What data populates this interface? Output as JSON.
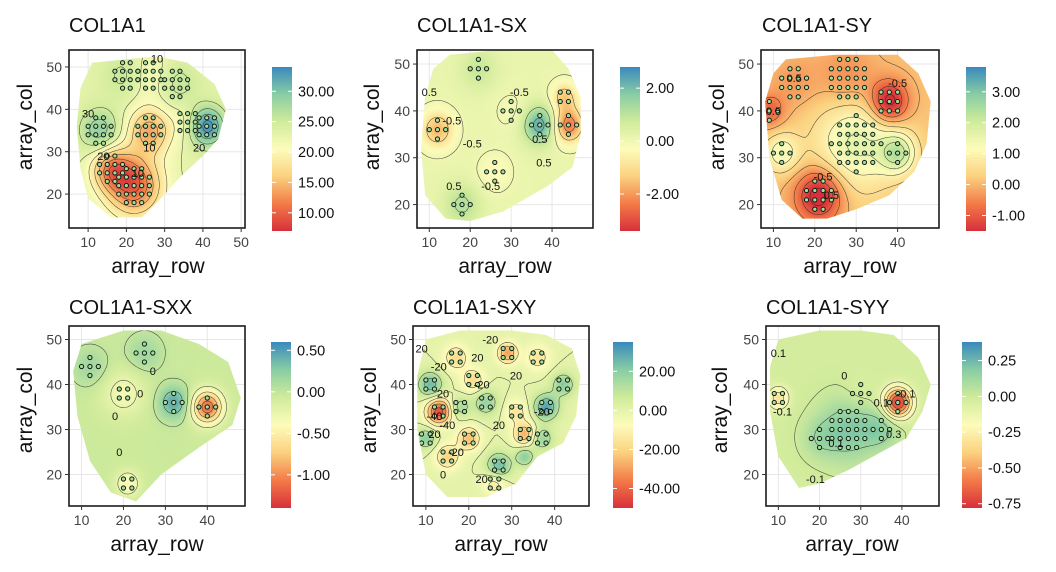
{
  "figure": {
    "colors": {
      "palette_spectral": [
        "#d7303b",
        "#f37b47",
        "#fbd17f",
        "#fdfcbb",
        "#d0eb9b",
        "#88cda4",
        "#3a89bd"
      ],
      "point_fill": "#a7dd9a",
      "point_stroke": "#0f1a14",
      "contour": "#222222",
      "grid": "#e7e7e7",
      "frame": "#1c1c1c"
    }
  },
  "chart_data": [
    {
      "type": "heatmap",
      "title": "COL1A1",
      "xlabel": "array_row",
      "ylabel": "array_col",
      "xlim": [
        5,
        51
      ],
      "ylim": [
        12,
        54
      ],
      "xticks": [
        "10",
        "20",
        "30",
        "40",
        "50"
      ],
      "xtick_values": [
        10,
        20,
        30,
        40,
        50
      ],
      "yticks": [
        "20",
        "30",
        "40",
        "50"
      ],
      "ytick_values": [
        20,
        30,
        40,
        50
      ],
      "colorbar": {
        "min": 7,
        "max": 34,
        "ticks": [
          "10.00",
          "15.00",
          "20.00",
          "25.00",
          "30.00"
        ],
        "tick_values": [
          10,
          15,
          20,
          25,
          30
        ]
      },
      "contour_labels": [
        {
          "text": "10",
          "x": 28,
          "y": 52
        },
        {
          "text": "30",
          "x": 10,
          "y": 39
        },
        {
          "text": "20",
          "x": 14,
          "y": 29
        },
        {
          "text": "10",
          "x": 26,
          "y": 31
        },
        {
          "text": "10",
          "x": 23,
          "y": 25
        },
        {
          "text": "20",
          "x": 39,
          "y": 31
        }
      ],
      "boundary": [
        [
          11,
          51
        ],
        [
          22,
          52
        ],
        [
          28,
          52.5
        ],
        [
          36,
          51
        ],
        [
          43,
          46
        ],
        [
          46,
          40
        ],
        [
          44,
          33
        ],
        [
          40,
          29
        ],
        [
          34,
          24
        ],
        [
          28,
          18
        ],
        [
          24,
          14.5
        ],
        [
          16,
          14.5
        ],
        [
          10,
          19
        ],
        [
          8,
          26
        ],
        [
          7,
          36
        ],
        [
          8,
          45
        ]
      ],
      "clusters": [
        [
          41,
          36,
          3.2,
          11
        ],
        [
          36,
          37,
          3.2,
          -2
        ],
        [
          13,
          35,
          3.6,
          6
        ],
        [
          26,
          35,
          4,
          -9
        ],
        [
          22,
          22,
          5,
          -13
        ],
        [
          16,
          26,
          3.6,
          -9
        ],
        [
          33,
          46,
          4,
          3
        ],
        [
          20,
          48,
          4,
          3
        ],
        [
          26,
          48,
          4,
          -3
        ]
      ],
      "baseline": 23
    },
    {
      "type": "heatmap",
      "title": "COL1A1-SX",
      "xlabel": "array_row",
      "ylabel": "array_col",
      "xlim": [
        7,
        50
      ],
      "ylim": [
        15,
        53
      ],
      "xticks": [
        "10",
        "20",
        "30",
        "40"
      ],
      "xtick_values": [
        10,
        20,
        30,
        40
      ],
      "yticks": [
        "20",
        "30",
        "40",
        "50"
      ],
      "ytick_values": [
        20,
        30,
        40,
        50
      ],
      "colorbar": {
        "min": -3.4,
        "max": 2.8,
        "ticks": [
          "-2.00",
          "0.00",
          "2.00"
        ],
        "tick_values": [
          -2,
          0,
          2
        ]
      },
      "contour_labels": [
        {
          "text": "0.5",
          "x": 10,
          "y": 44
        },
        {
          "text": "-0.5",
          "x": 15.5,
          "y": 38
        },
        {
          "text": "-0.5",
          "x": 20.5,
          "y": 33
        },
        {
          "text": "0.5",
          "x": 37,
          "y": 34
        },
        {
          "text": "0.5",
          "x": 38,
          "y": 29
        },
        {
          "text": "0.5",
          "x": 16,
          "y": 24
        },
        {
          "text": "-0.5",
          "x": 25,
          "y": 24
        },
        {
          "text": "-0.5",
          "x": 32,
          "y": 44
        }
      ],
      "boundary": [
        [
          15,
          52
        ],
        [
          27,
          53
        ],
        [
          40,
          53
        ],
        [
          44,
          49
        ],
        [
          47,
          43
        ],
        [
          47,
          35
        ],
        [
          45,
          28
        ],
        [
          39,
          24
        ],
        [
          33,
          21
        ],
        [
          28,
          18.5
        ],
        [
          20,
          16.5
        ],
        [
          14,
          17
        ],
        [
          9,
          22
        ],
        [
          8,
          32
        ],
        [
          9,
          43
        ],
        [
          11,
          49
        ]
      ],
      "clusters": [
        [
          12,
          36,
          2.8,
          -1.8
        ],
        [
          37,
          37,
          2.8,
          2.2
        ],
        [
          44,
          37,
          2.6,
          -2.6
        ],
        [
          43,
          43,
          2.2,
          -1.5
        ],
        [
          22,
          49,
          3,
          0.7
        ],
        [
          26,
          27,
          3,
          -0.5
        ],
        [
          18,
          20,
          3,
          1
        ],
        [
          30,
          40,
          3,
          -0.3
        ]
      ],
      "baseline": 0.15
    },
    {
      "type": "heatmap",
      "title": "COL1A1-SY",
      "xlabel": "array_row",
      "ylabel": "array_col",
      "xlim": [
        7,
        50
      ],
      "ylim": [
        15,
        53
      ],
      "xticks": [
        "10",
        "20",
        "30",
        "40"
      ],
      "xtick_values": [
        10,
        20,
        30,
        40
      ],
      "yticks": [
        "20",
        "30",
        "40",
        "50"
      ],
      "ytick_values": [
        20,
        30,
        40,
        50
      ],
      "colorbar": {
        "min": -1.5,
        "max": 3.8,
        "ticks": [
          "-1.00",
          "0.00",
          "1.00",
          "2.00",
          "3.00"
        ],
        "tick_values": [
          -1,
          0,
          1,
          2,
          3
        ]
      },
      "contour_labels": [
        {
          "text": "0.5",
          "x": 15,
          "y": 47
        },
        {
          "text": "0.5",
          "x": 10,
          "y": 40
        },
        {
          "text": "-0.5",
          "x": 40,
          "y": 46
        },
        {
          "text": "-0.5",
          "x": 22,
          "y": 26
        },
        {
          "text": "0.5",
          "x": 24,
          "y": 22
        }
      ],
      "boundary": [
        [
          13,
          51
        ],
        [
          25,
          52
        ],
        [
          40,
          52
        ],
        [
          45,
          48
        ],
        [
          48,
          42
        ],
        [
          47,
          33
        ],
        [
          44,
          27
        ],
        [
          38,
          22
        ],
        [
          30,
          19
        ],
        [
          23,
          17
        ],
        [
          17,
          17
        ],
        [
          12,
          21
        ],
        [
          9,
          30
        ],
        [
          8,
          42
        ],
        [
          10,
          48
        ]
      ],
      "clusters": [
        [
          38,
          42,
          3.2,
          -2
        ],
        [
          21,
          22,
          4,
          -2
        ],
        [
          30,
          33,
          7,
          1.5
        ],
        [
          12,
          31,
          3,
          1.2
        ],
        [
          40,
          31,
          3,
          1.8
        ],
        [
          15,
          46,
          4,
          -0.4
        ],
        [
          28,
          47,
          5,
          -0.6
        ],
        [
          9,
          40,
          2.5,
          -1
        ]
      ],
      "baseline": 0.1
    },
    {
      "type": "heatmap",
      "title": "COL1A1-SXX",
      "xlabel": "array_row",
      "ylabel": "array_col",
      "xlim": [
        7,
        49
      ],
      "ylim": [
        13,
        53
      ],
      "xticks": [
        "10",
        "20",
        "30",
        "40"
      ],
      "xtick_values": [
        10,
        20,
        30,
        40
      ],
      "yticks": [
        "20",
        "30",
        "40",
        "50"
      ],
      "ytick_values": [
        20,
        30,
        40,
        50
      ],
      "colorbar": {
        "min": -1.4,
        "max": 0.6,
        "ticks": [
          "-1.00",
          "-0.50",
          "0.00",
          "0.50"
        ],
        "tick_values": [
          -1,
          -0.5,
          0,
          0.5
        ]
      },
      "contour_labels": [
        {
          "text": "0",
          "x": 27,
          "y": 43
        },
        {
          "text": "0",
          "x": 18,
          "y": 33
        },
        {
          "text": "0",
          "x": 24,
          "y": 38
        },
        {
          "text": "0",
          "x": 19,
          "y": 25
        }
      ],
      "boundary": [
        [
          10,
          49
        ],
        [
          20,
          52
        ],
        [
          29,
          52
        ],
        [
          38,
          49
        ],
        [
          45,
          45
        ],
        [
          48,
          37
        ],
        [
          46,
          31
        ],
        [
          38,
          26
        ],
        [
          29,
          20
        ],
        [
          23,
          14
        ],
        [
          17,
          16
        ],
        [
          12,
          23
        ],
        [
          9,
          33
        ],
        [
          8,
          43
        ]
      ],
      "clusters": [
        [
          40,
          35,
          2.5,
          -1.1
        ],
        [
          32,
          36,
          2.5,
          0.5
        ],
        [
          21,
          18,
          2,
          -0.4
        ],
        [
          12,
          44,
          3,
          0.2
        ],
        [
          25,
          47,
          3,
          0.2
        ],
        [
          20,
          38,
          3.5,
          -0.3
        ]
      ],
      "baseline": -0.05
    },
    {
      "type": "heatmap",
      "title": "COL1A1-SXY",
      "xlabel": "array_row",
      "ylabel": "array_col",
      "xlim": [
        7,
        48
      ],
      "ylim": [
        13,
        53
      ],
      "xticks": [
        "10",
        "20",
        "30",
        "40"
      ],
      "xtick_values": [
        10,
        20,
        30,
        40
      ],
      "yticks": [
        "20",
        "30",
        "40",
        "50"
      ],
      "ytick_values": [
        20,
        30,
        40,
        50
      ],
      "colorbar": {
        "min": -50,
        "max": 35,
        "ticks": [
          "-40.00",
          "-20.00",
          "0.00",
          "20.00"
        ],
        "tick_values": [
          -40,
          -20,
          0,
          20
        ]
      },
      "contour_labels": [
        {
          "text": "20",
          "x": 9,
          "y": 48
        },
        {
          "text": "-20",
          "x": 25,
          "y": 50
        },
        {
          "text": "20",
          "x": 22,
          "y": 46
        },
        {
          "text": "-20",
          "x": 13,
          "y": 44
        },
        {
          "text": "20",
          "x": 14,
          "y": 38
        },
        {
          "text": "-20",
          "x": 23,
          "y": 40
        },
        {
          "text": "20",
          "x": 31,
          "y": 42
        },
        {
          "text": "-40",
          "x": 12,
          "y": 33
        },
        {
          "text": "-40",
          "x": 15,
          "y": 31
        },
        {
          "text": "20",
          "x": 12,
          "y": 29
        },
        {
          "text": "-20",
          "x": 17,
          "y": 25
        },
        {
          "text": "20",
          "x": 27,
          "y": 31
        },
        {
          "text": "-20",
          "x": 37,
          "y": 34
        },
        {
          "text": "20",
          "x": 23,
          "y": 19
        },
        {
          "text": "0",
          "x": 14,
          "y": 20
        }
      ],
      "boundary": [
        [
          10,
          50
        ],
        [
          18,
          52
        ],
        [
          30,
          52
        ],
        [
          38,
          51
        ],
        [
          44,
          48
        ],
        [
          46,
          42
        ],
        [
          45,
          33
        ],
        [
          42,
          27
        ],
        [
          36,
          24
        ],
        [
          31,
          18
        ],
        [
          24,
          15
        ],
        [
          15,
          15
        ],
        [
          10,
          20
        ],
        [
          8,
          30
        ],
        [
          8,
          42
        ]
      ],
      "clusters": [
        [
          13,
          34,
          2,
          -45
        ],
        [
          38,
          35,
          2,
          30
        ],
        [
          11,
          40,
          2,
          25
        ],
        [
          27,
          22,
          2,
          25
        ],
        [
          29,
          47,
          1.6,
          -30
        ],
        [
          20,
          28,
          1.8,
          -25
        ],
        [
          33,
          29,
          1.8,
          -28
        ],
        [
          42,
          40,
          1.8,
          20
        ],
        [
          17,
          46,
          2,
          -18
        ],
        [
          24,
          36,
          2,
          18
        ],
        [
          31,
          34,
          1.8,
          -15
        ],
        [
          15,
          24,
          2,
          -20
        ],
        [
          26,
          18,
          1.8,
          -15
        ],
        [
          36,
          46,
          2,
          -15
        ],
        [
          21,
          41,
          1.8,
          -18
        ],
        [
          37,
          28,
          1.8,
          18
        ],
        [
          10,
          28,
          1.6,
          20
        ],
        [
          18,
          35,
          1.6,
          15
        ],
        [
          33,
          24,
          1.5,
          20
        ]
      ],
      "baseline": 0
    },
    {
      "type": "heatmap",
      "title": "COL1A1-SYY",
      "xlabel": "array_row",
      "ylabel": "array_col",
      "xlim": [
        7,
        49
      ],
      "ylim": [
        13,
        53
      ],
      "xticks": [
        "10",
        "20",
        "30",
        "40"
      ],
      "xtick_values": [
        10,
        20,
        30,
        40
      ],
      "yticks": [
        "20",
        "30",
        "40",
        "50"
      ],
      "ytick_values": [
        20,
        30,
        40,
        50
      ],
      "colorbar": {
        "min": -0.78,
        "max": 0.38,
        "ticks": [
          "-0.75",
          "-0.50",
          "-0.25",
          "0.00",
          "0.25"
        ],
        "tick_values": [
          -0.75,
          -0.5,
          -0.25,
          0,
          0.25
        ]
      },
      "contour_labels": [
        {
          "text": "0.1",
          "x": 10,
          "y": 47
        },
        {
          "text": "-0.1",
          "x": 11,
          "y": 34
        },
        {
          "text": "-0.1",
          "x": 41,
          "y": 38
        },
        {
          "text": "-0.1",
          "x": 19,
          "y": 19
        },
        {
          "text": "0.1",
          "x": 24,
          "y": 27
        },
        {
          "text": "0.1",
          "x": 35,
          "y": 36
        },
        {
          "text": "0.3",
          "x": 38,
          "y": 29
        },
        {
          "text": "0",
          "x": 26,
          "y": 42
        }
      ],
      "boundary": [
        [
          10,
          50
        ],
        [
          20,
          52
        ],
        [
          30,
          52
        ],
        [
          38,
          51
        ],
        [
          44,
          46
        ],
        [
          47,
          40
        ],
        [
          45,
          34
        ],
        [
          41,
          28
        ],
        [
          33,
          24
        ],
        [
          27,
          21
        ],
        [
          20,
          18
        ],
        [
          15,
          17
        ],
        [
          10,
          24
        ],
        [
          8,
          34
        ],
        [
          8,
          44
        ]
      ],
      "clusters": [
        [
          39,
          36,
          2.3,
          -0.75
        ],
        [
          27,
          30,
          5,
          0.22
        ],
        [
          35,
          30,
          3,
          0.15
        ],
        [
          10,
          37,
          1.8,
          -0.3
        ],
        [
          30,
          38,
          3,
          -0.05
        ],
        [
          20,
          28,
          3,
          0.1
        ]
      ],
      "baseline": -0.02
    }
  ]
}
